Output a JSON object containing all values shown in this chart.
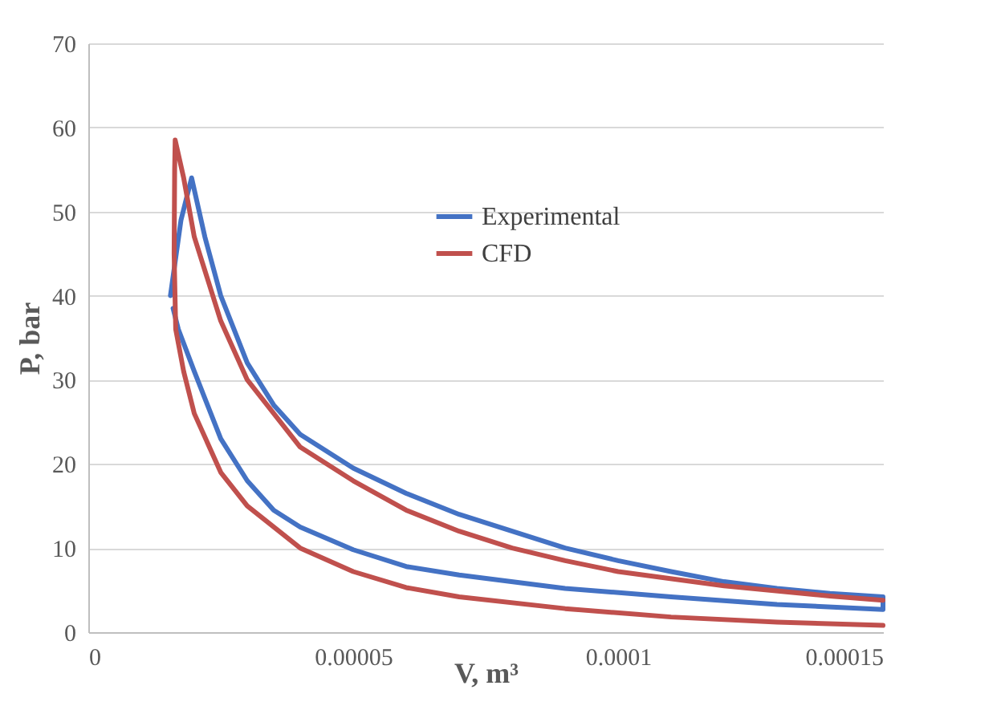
{
  "chart_data": {
    "type": "line",
    "xlabel": "V, m³",
    "ylabel": "P, bar",
    "xlim": [
      0,
      0.00015
    ],
    "xticks": [
      0,
      {
        "value": 5e-05,
        "label": "0.00005"
      },
      0.0001,
      0.00015
    ],
    "ylim": [
      0,
      70
    ],
    "yticks": [
      0,
      10,
      20,
      30,
      40,
      50,
      60,
      70
    ],
    "grid": "y",
    "legend": "top right",
    "series": [
      {
        "name": "Experimental",
        "color": "#4472c4",
        "x": [
          1.55e-05,
          1.75e-05,
          1.95e-05,
          2.2e-05,
          2.5e-05,
          3e-05,
          3.5e-05,
          4e-05,
          5e-05,
          6e-05,
          7e-05,
          8e-05,
          9e-05,
          0.0001,
          0.00011,
          0.00012,
          0.00013,
          0.00014,
          0.00015,
          0.00015,
          0.00013,
          0.00011,
          9e-05,
          7e-05,
          6e-05,
          5e-05,
          4e-05,
          3.5e-05,
          3e-05,
          2.5e-05,
          2e-05,
          1.7e-05,
          1.6e-05
        ],
        "values": [
          40,
          49,
          54,
          47,
          40,
          32,
          27,
          23.5,
          19.5,
          16.5,
          14,
          12,
          10,
          8.5,
          7.2,
          6,
          5.2,
          4.6,
          4.2,
          2.7,
          3.3,
          4.2,
          5.2,
          6.8,
          7.8,
          9.8,
          12.5,
          14.5,
          18,
          23,
          31,
          36,
          38.5
        ]
      },
      {
        "name": "CFD",
        "color": "#c0504d",
        "x": [
          0.00015,
          0.00013,
          0.00011,
          9e-05,
          7e-05,
          6e-05,
          5e-05,
          4e-05,
          3e-05,
          2.5e-05,
          2e-05,
          1.8e-05,
          1.65e-05,
          1.62e-05,
          1.63e-05,
          1.64e-05,
          1.8e-05,
          2e-05,
          2.5e-05,
          3e-05,
          4e-05,
          5e-05,
          6e-05,
          7e-05,
          8e-05,
          9e-05,
          0.0001,
          0.00012,
          0.00014,
          0.00015
        ],
        "values": [
          0.8,
          1.2,
          1.8,
          2.8,
          4.2,
          5.3,
          7.2,
          10,
          15,
          19,
          26,
          31,
          36,
          45,
          55,
          58.5,
          54,
          47,
          37,
          30,
          22,
          18,
          14.5,
          12,
          10,
          8.5,
          7.2,
          5.5,
          4.3,
          3.8
        ]
      }
    ]
  }
}
